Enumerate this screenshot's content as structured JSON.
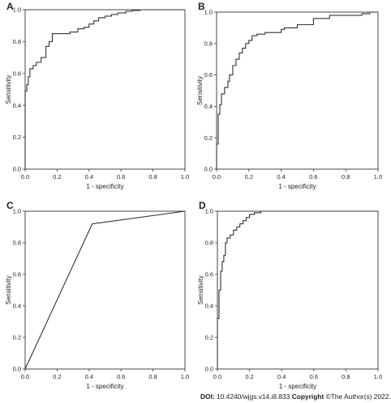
{
  "footer": {
    "doi_label": "DOI:",
    "doi_value": "10.4240/wjgs.v14.i8.833",
    "copyright_label": "Copyright",
    "copyright_text": "©The Author(s) 2022."
  },
  "chart_data": [
    {
      "panel": "A",
      "type": "line",
      "xlabel": "1 - specificity",
      "ylabel": "Sensitivity",
      "xlim": [
        0,
        1
      ],
      "ylim": [
        0,
        1
      ],
      "xticks": [
        "0.0",
        "0.2",
        "0.4",
        "0.6",
        "0.8",
        "1.0"
      ],
      "yticks": [
        "0.0",
        "0.2",
        "0.4",
        "0.6",
        "0.8",
        "1.0"
      ],
      "grid": false,
      "series": [
        {
          "step": true,
          "x": [
            0,
            0,
            0.01,
            0.01,
            0.02,
            0.02,
            0.03,
            0.03,
            0.05,
            0.05,
            0.07,
            0.07,
            0.1,
            0.1,
            0.13,
            0.13,
            0.15,
            0.15,
            0.17,
            0.17,
            0.28,
            0.28,
            0.33,
            0.33,
            0.37,
            0.37,
            0.4,
            0.4,
            0.43,
            0.43,
            0.46,
            0.46,
            0.5,
            0.5,
            0.54,
            0.54,
            0.58,
            0.58,
            0.63,
            0.63,
            0.67,
            0.67,
            0.72,
            0.72,
            1.0
          ],
          "y": [
            0,
            0.49,
            0.49,
            0.53,
            0.53,
            0.58,
            0.58,
            0.63,
            0.63,
            0.65,
            0.65,
            0.67,
            0.67,
            0.7,
            0.7,
            0.77,
            0.77,
            0.8,
            0.8,
            0.85,
            0.85,
            0.86,
            0.86,
            0.88,
            0.88,
            0.89,
            0.89,
            0.91,
            0.91,
            0.93,
            0.93,
            0.95,
            0.95,
            0.96,
            0.96,
            0.97,
            0.97,
            0.98,
            0.98,
            0.99,
            0.99,
            0.995,
            0.995,
            1.0,
            1.0
          ]
        }
      ]
    },
    {
      "panel": "B",
      "type": "line",
      "xlabel": "1 - specificity",
      "ylabel": "Sensitivity",
      "xlim": [
        0,
        1
      ],
      "ylim": [
        0,
        1
      ],
      "xticks": [
        "0.0",
        "0.2",
        "0.4",
        "0.6",
        "0.8",
        "1.0"
      ],
      "yticks": [
        "0.0",
        "0.2",
        "0.4",
        "0.6",
        "0.8",
        "1.0"
      ],
      "grid": false,
      "series": [
        {
          "step": true,
          "x": [
            0,
            0,
            0.01,
            0.01,
            0.02,
            0.02,
            0.03,
            0.03,
            0.05,
            0.05,
            0.07,
            0.07,
            0.08,
            0.08,
            0.1,
            0.1,
            0.12,
            0.12,
            0.14,
            0.14,
            0.16,
            0.16,
            0.18,
            0.18,
            0.2,
            0.2,
            0.22,
            0.22,
            0.25,
            0.25,
            0.3,
            0.3,
            0.4,
            0.4,
            0.42,
            0.42,
            0.5,
            0.5,
            0.6,
            0.6,
            0.7,
            0.7,
            0.9,
            0.9,
            0.95,
            0.95,
            1.0
          ],
          "y": [
            0,
            0.16,
            0.16,
            0.35,
            0.35,
            0.41,
            0.41,
            0.48,
            0.48,
            0.52,
            0.52,
            0.56,
            0.56,
            0.6,
            0.6,
            0.66,
            0.66,
            0.7,
            0.7,
            0.74,
            0.74,
            0.77,
            0.77,
            0.8,
            0.8,
            0.82,
            0.82,
            0.85,
            0.85,
            0.86,
            0.86,
            0.87,
            0.87,
            0.89,
            0.89,
            0.9,
            0.9,
            0.92,
            0.92,
            0.96,
            0.96,
            0.98,
            0.98,
            0.99,
            0.99,
            1.0,
            1.0
          ]
        }
      ]
    },
    {
      "panel": "C",
      "type": "line",
      "xlabel": "1 - specificity",
      "ylabel": "Sensitivity",
      "xlim": [
        0,
        1
      ],
      "ylim": [
        0,
        1
      ],
      "xticks": [
        "0.0",
        "0.2",
        "0.4",
        "0.6",
        "0.8",
        "1.0"
      ],
      "yticks": [
        "0.0",
        "0.2",
        "0.4",
        "0.6",
        "0.8",
        "1.0"
      ],
      "grid": false,
      "series": [
        {
          "step": false,
          "x": [
            0,
            0.42,
            1.0
          ],
          "y": [
            0,
            0.92,
            1.0
          ]
        }
      ]
    },
    {
      "panel": "D",
      "type": "line",
      "xlabel": "1 - specificity",
      "ylabel": "Sensitivity",
      "xlim": [
        0,
        1
      ],
      "ylim": [
        0,
        1
      ],
      "xticks": [
        "0.0",
        "0.2",
        "0.4",
        "0.6",
        "0.8",
        "1.0"
      ],
      "yticks": [
        "0.0",
        "0.2",
        "0.4",
        "0.6",
        "0.8",
        "1.0"
      ],
      "grid": false,
      "series": [
        {
          "step": true,
          "x": [
            0,
            0,
            0.01,
            0.01,
            0.02,
            0.02,
            0.03,
            0.03,
            0.04,
            0.04,
            0.05,
            0.05,
            0.06,
            0.06,
            0.08,
            0.08,
            0.1,
            0.1,
            0.12,
            0.12,
            0.14,
            0.14,
            0.16,
            0.16,
            0.18,
            0.18,
            0.2,
            0.2,
            0.23,
            0.23,
            0.27,
            0.27,
            1.0
          ],
          "y": [
            0,
            0.32,
            0.32,
            0.5,
            0.5,
            0.62,
            0.62,
            0.68,
            0.68,
            0.72,
            0.72,
            0.8,
            0.8,
            0.83,
            0.83,
            0.85,
            0.85,
            0.88,
            0.88,
            0.9,
            0.9,
            0.92,
            0.92,
            0.94,
            0.94,
            0.96,
            0.96,
            0.98,
            0.98,
            0.99,
            0.99,
            1.0,
            1.0
          ]
        }
      ]
    }
  ]
}
